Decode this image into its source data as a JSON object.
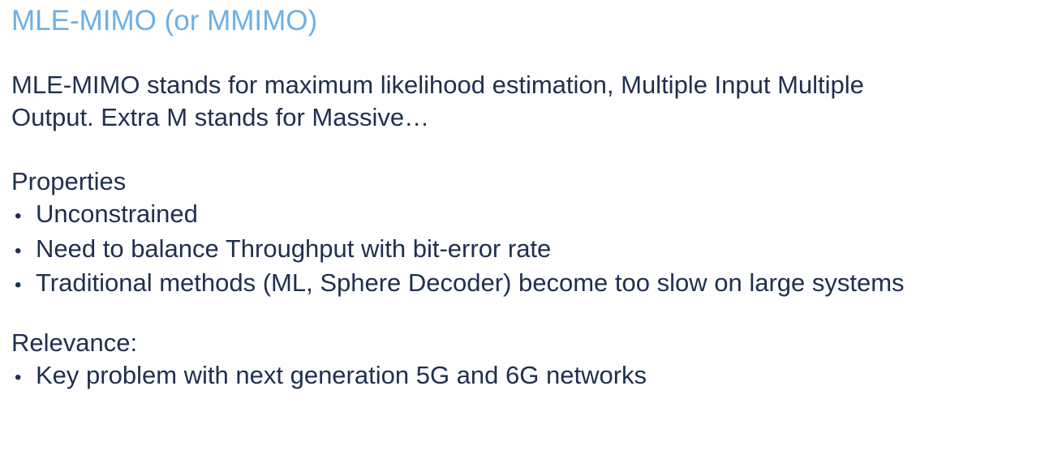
{
  "slide": {
    "title": "MLE-MIMO (or MMIMO)",
    "intro": {
      "line1": "MLE-MIMO stands for maximum likelihood estimation, Multiple Input Multiple",
      "line2": "Output. Extra M stands for Massive…"
    },
    "properties": {
      "heading": "Properties",
      "items": [
        "Unconstrained",
        "Need to balance Throughput with bit-error rate",
        "Traditional methods (ML, Sphere Decoder) become too slow on large systems"
      ]
    },
    "relevance": {
      "heading": "Relevance:",
      "items": [
        "Key problem with next generation 5G and 6G networks"
      ]
    },
    "bullet_char": "•",
    "colors": {
      "title": "#6db0e6",
      "body_text": "#1f2f4f",
      "background": "#ffffff"
    }
  }
}
